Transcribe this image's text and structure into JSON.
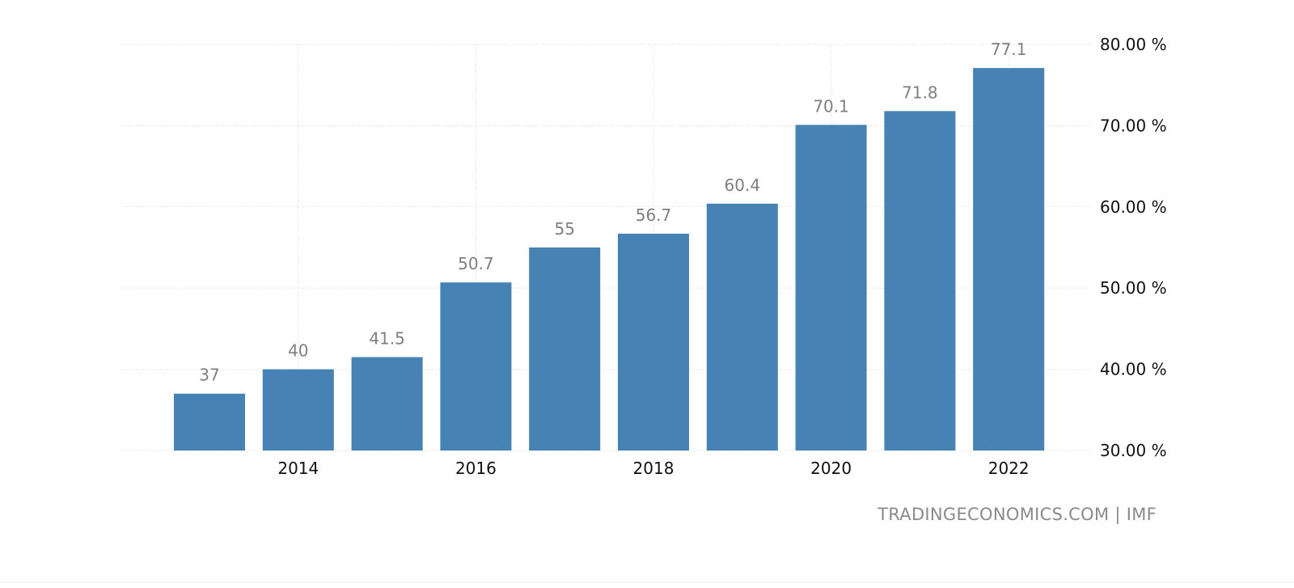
{
  "chart_data": {
    "type": "bar",
    "categories": [
      "2013",
      "2014",
      "2015",
      "2016",
      "2017",
      "2018",
      "2019",
      "2020",
      "2021",
      "2022"
    ],
    "values": [
      37,
      40,
      41.5,
      50.7,
      55,
      56.7,
      60.4,
      70.1,
      71.8,
      77.1
    ],
    "data_labels": [
      "37",
      "40",
      "41.5",
      "50.7",
      "55",
      "56.7",
      "60.4",
      "70.1",
      "71.8",
      "77.1"
    ],
    "x_tick_labels": [
      "2014",
      "2016",
      "2018",
      "2020",
      "2022"
    ],
    "y_tick_labels": [
      "30.00 %",
      "40.00 %",
      "50.00 %",
      "60.00 %",
      "70.00 %",
      "80.00 %"
    ],
    "y_ticks": [
      30,
      40,
      50,
      60,
      70,
      80
    ],
    "ylim": [
      30,
      80
    ],
    "y_axis_side": "right",
    "grid": true,
    "bar_color": "#4682b4",
    "title": "",
    "xlabel": "",
    "ylabel": ""
  },
  "source": "TRADINGECONOMICS.COM | IMF"
}
